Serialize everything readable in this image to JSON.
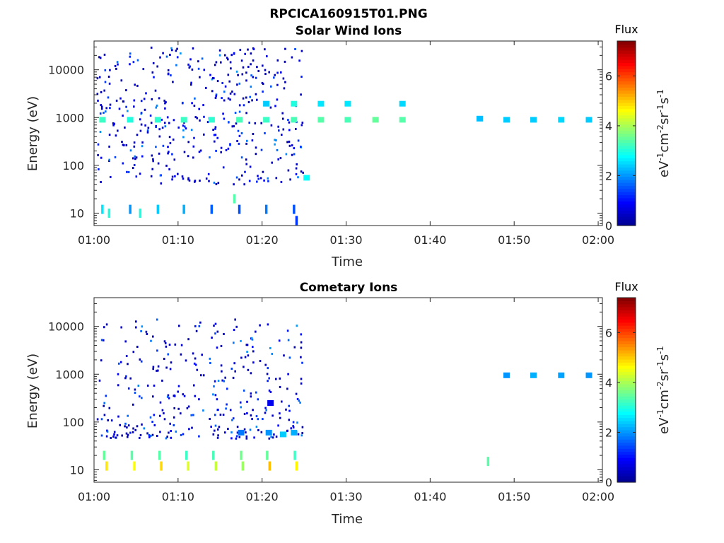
{
  "figure": {
    "title": "RPCICA160915T01.PNG"
  },
  "colormap": [
    "#00008f",
    "#0000ff",
    "#0080ff",
    "#00ffff",
    "#80ff80",
    "#ffff00",
    "#ff8000",
    "#ff0000",
    "#800000"
  ],
  "chart_data": [
    {
      "type": "heatmap",
      "title": "Solar Wind Ions",
      "xlabel": "Time",
      "ylabel": "Energy (eV)",
      "x_ticks": [
        "01:00",
        "01:10",
        "01:20",
        "01:30",
        "01:40",
        "01:50",
        "02:00"
      ],
      "x_range_min": [
        0,
        60.5
      ],
      "y_ticks": [
        "10",
        "100",
        "1000",
        "10000"
      ],
      "y_range_eV": [
        5.5,
        40000
      ],
      "y_scale": "log",
      "colorbar": {
        "label": "Flux",
        "units": "eV-1cm-2sr-1s-1",
        "ticks": [
          "0",
          "2",
          "4",
          "6"
        ],
        "range": [
          0,
          7.4
        ]
      },
      "cells": [
        [
          1.0,
          900,
          3.2
        ],
        [
          4.3,
          900,
          3.0
        ],
        [
          7.6,
          900,
          3.1
        ],
        [
          10.7,
          900,
          3.2
        ],
        [
          14.0,
          900,
          3.1
        ],
        [
          17.3,
          900,
          3.3
        ],
        [
          20.5,
          900,
          3.2
        ],
        [
          23.8,
          900,
          3.3
        ],
        [
          27.0,
          900,
          3.4
        ],
        [
          30.2,
          900,
          3.3
        ],
        [
          33.5,
          900,
          3.5
        ],
        [
          36.7,
          900,
          3.4
        ],
        [
          45.9,
          950,
          2.3
        ],
        [
          49.1,
          900,
          2.4
        ],
        [
          52.3,
          900,
          2.4
        ],
        [
          55.6,
          900,
          2.5
        ],
        [
          58.9,
          900,
          2.4
        ],
        [
          27.0,
          1950,
          2.6
        ],
        [
          30.2,
          1950,
          2.6
        ],
        [
          36.7,
          1950,
          2.5
        ],
        [
          23.8,
          1950,
          3.0
        ],
        [
          20.5,
          1950,
          2.4
        ],
        [
          1.0,
          12,
          2.6
        ],
        [
          4.3,
          12,
          2.0
        ],
        [
          7.6,
          12,
          2.4
        ],
        [
          10.7,
          12,
          2.2
        ],
        [
          14.0,
          12,
          1.6
        ],
        [
          17.3,
          12,
          1.5
        ],
        [
          20.5,
          12,
          1.8
        ],
        [
          23.8,
          12,
          1.5
        ],
        [
          24.1,
          7,
          1.3
        ],
        [
          1.8,
          10,
          3.0
        ],
        [
          5.5,
          10,
          3.0
        ],
        [
          16.7,
          20,
          3.4
        ],
        [
          25.3,
          55,
          2.8
        ]
      ]
    },
    {
      "type": "heatmap",
      "title": "Cometary Ions",
      "xlabel": "Time",
      "ylabel": "Energy (eV)",
      "x_ticks": [
        "01:00",
        "01:10",
        "01:20",
        "01:30",
        "01:40",
        "01:50",
        "02:00"
      ],
      "x_range_min": [
        0,
        60.5
      ],
      "y_ticks": [
        "10",
        "100",
        "1000",
        "10000"
      ],
      "y_range_eV": [
        5.5,
        40000
      ],
      "y_scale": "log",
      "colorbar": {
        "label": "Flux",
        "units": "eV-1cm-2sr-1s-1",
        "ticks": [
          "0",
          "2",
          "4",
          "6"
        ],
        "range": [
          0,
          7.4
        ]
      },
      "cells": [
        [
          1.5,
          12,
          4.8
        ],
        [
          4.8,
          12,
          4.6
        ],
        [
          8.0,
          12,
          4.9
        ],
        [
          11.2,
          12,
          4.4
        ],
        [
          14.5,
          12,
          4.2
        ],
        [
          17.7,
          12,
          3.9
        ],
        [
          20.9,
          12,
          5.1
        ],
        [
          24.1,
          12,
          4.7
        ],
        [
          1.2,
          20,
          3.5
        ],
        [
          4.5,
          20,
          3.4
        ],
        [
          7.8,
          20,
          3.4
        ],
        [
          11.0,
          20,
          3.2
        ],
        [
          14.2,
          20,
          3.3
        ],
        [
          17.5,
          20,
          3.6
        ],
        [
          20.6,
          20,
          3.5
        ],
        [
          23.9,
          20,
          3.2
        ],
        [
          46.9,
          15,
          3.4
        ],
        [
          49.1,
          950,
          2.0
        ],
        [
          52.3,
          950,
          2.2
        ],
        [
          55.6,
          950,
          2.1
        ],
        [
          58.9,
          950,
          2.0
        ],
        [
          21.0,
          250,
          0.8
        ],
        [
          17.5,
          60,
          1.8
        ],
        [
          20.8,
          60,
          2.0
        ],
        [
          23.8,
          60,
          2.2
        ],
        [
          22.5,
          55,
          2.4
        ]
      ]
    }
  ]
}
